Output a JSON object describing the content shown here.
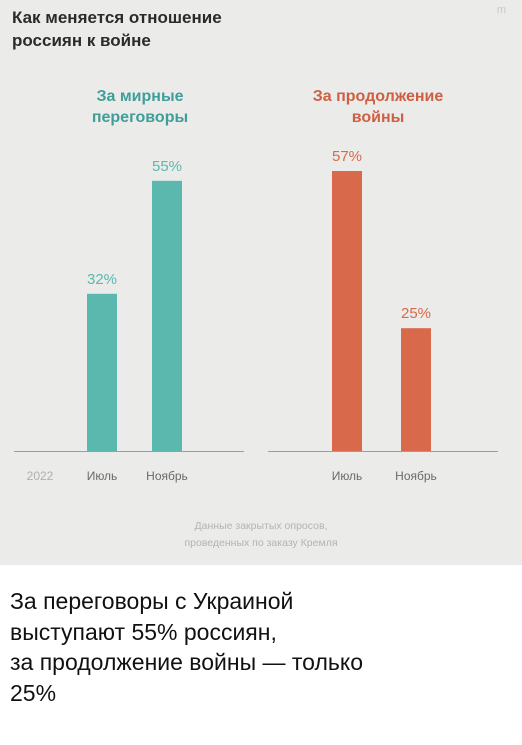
{
  "card": {
    "title": "Как меняется отношение\nроссиян к войне",
    "corner_mark": "m",
    "source_note": "Данные закрытых опросов,\nпроведенных по заказу Кремля"
  },
  "chart_data": {
    "type": "bar",
    "year_label": "2022",
    "categories": [
      "Июль",
      "Ноябрь"
    ],
    "series": [
      {
        "name": "За мирные\nпереговоры",
        "values": [
          32,
          55
        ],
        "labels": [
          "32%",
          "55%"
        ],
        "color": "#5bb8ae"
      },
      {
        "name": "За продолжение\nвойны",
        "values": [
          57,
          25
        ],
        "labels": [
          "57%",
          "25%"
        ],
        "color": "#d9694b"
      }
    ],
    "ylim": [
      0,
      60
    ],
    "grid": false
  },
  "caption": "За переговоры с Украиной\nвыступают 55% россиян,\nза продолжение войны — только\n25%"
}
